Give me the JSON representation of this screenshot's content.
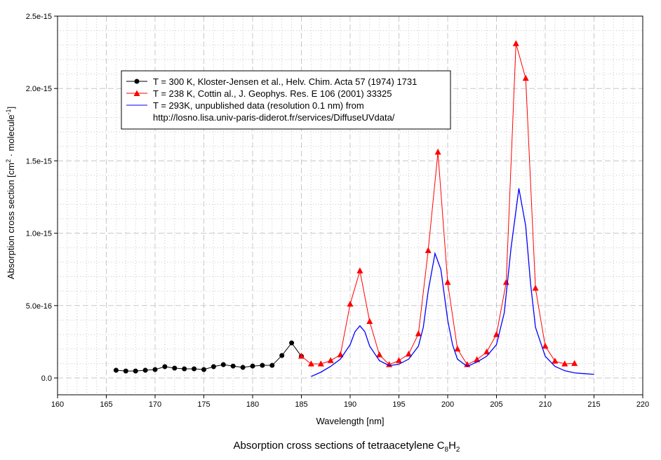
{
  "chart_data": {
    "type": "line",
    "title": "Absorption cross sections of tetraacetylene C8H2",
    "title_main": "Absorption cross sections of tetraacetylene C",
    "title_sub1": "8",
    "title_mid": "H",
    "title_sub2": "2",
    "xlabel": "Wavelength [nm]",
    "ylabel": "Absorption cross section [cm2 · molecule-1]",
    "ylabel_parts": {
      "a": "Absorption cross section [cm",
      "sup1": "2",
      "b": " · molecule",
      "sup2": "-1",
      "c": "]"
    },
    "xlim": [
      160,
      220
    ],
    "ylim": [
      0,
      2.5e-15
    ],
    "xticks": [
      "160",
      "165",
      "170",
      "175",
      "180",
      "185",
      "190",
      "195",
      "200",
      "205",
      "210",
      "215",
      "220"
    ],
    "yticks": [
      "0.0",
      "5.0e-16",
      "1.0e-15",
      "1.5e-15",
      "2.0e-15",
      "2.5e-15"
    ],
    "grid": true,
    "legend_position": "top-left",
    "series": [
      {
        "name": "T = 300 K, Kloster-Jensen et al., Helv. Chim. Acta 57 (1974) 1731",
        "color": "#000000",
        "marker": "circle",
        "x": [
          166,
          167,
          168,
          169,
          170,
          171,
          172,
          173,
          174,
          175,
          176,
          177,
          178,
          179,
          180,
          181,
          182,
          183,
          184,
          185
        ],
        "y": [
          5.3e-17,
          4.8e-17,
          4.8e-17,
          5.3e-17,
          5.8e-17,
          7.8e-17,
          6.8e-17,
          6.3e-17,
          6.3e-17,
          5.8e-17,
          7.8e-17,
          9.2e-17,
          8.2e-17,
          7.3e-17,
          8.2e-17,
          8.7e-17,
          8.7e-17,
          1.55e-16,
          2.42e-16,
          1.5e-16
        ]
      },
      {
        "name": "T = 238 K, Cottin al., J. Geophys. Res. E 106 (2001) 33325",
        "color": "#ff0000",
        "marker": "triangle",
        "x": [
          185,
          186,
          187,
          188,
          189,
          190,
          191,
          192,
          193,
          194,
          195,
          196,
          197,
          198,
          199,
          200,
          201,
          202,
          203,
          204,
          205,
          206,
          207,
          208,
          209,
          210,
          211,
          212,
          213
        ],
        "y": [
          1.5e-16,
          9.7e-17,
          9.7e-17,
          1.2e-16,
          1.6e-16,
          5.1e-16,
          7.4e-16,
          3.9e-16,
          1.6e-16,
          9.2e-17,
          1.2e-16,
          1.65e-16,
          3.05e-16,
          8.8e-16,
          1.56e-15,
          6.6e-16,
          2e-16,
          9.2e-17,
          1.26e-16,
          1.8e-16,
          3e-16,
          6.6e-16,
          2.31e-15,
          2.07e-15,
          6.2e-16,
          2.2e-16,
          1.16e-16,
          9.7e-17,
          1e-16
        ]
      },
      {
        "name": "T = 293K, unpublished data (resolution 0.1 nm) from",
        "name_line2": "http://losno.lisa.univ-paris-diderot.fr/services/DiffuseUVdata/",
        "color": "#0000ff",
        "marker": "none",
        "x": [
          186,
          187,
          188,
          189,
          190,
          190.5,
          191,
          191.5,
          192,
          193,
          194,
          195,
          196,
          197,
          197.5,
          198,
          198.7,
          199.3,
          200,
          200.5,
          201,
          202,
          203,
          204,
          205,
          205.8,
          206.5,
          207.3,
          208,
          208.5,
          209,
          210,
          211,
          212,
          213,
          214,
          215
        ],
        "y": [
          1e-17,
          4e-17,
          8e-17,
          1.3e-16,
          2.3e-16,
          3.2e-16,
          3.6e-16,
          3.2e-16,
          2.2e-16,
          1.2e-16,
          8.5e-17,
          9.5e-17,
          1.3e-16,
          2.2e-16,
          3.5e-16,
          6e-16,
          8.6e-16,
          7.5e-16,
          4e-16,
          2.3e-16,
          1.3e-16,
          8e-17,
          1.1e-16,
          1.5e-16,
          2.3e-16,
          4.5e-16,
          9e-16,
          1.31e-15,
          1.05e-15,
          6.5e-16,
          3.5e-16,
          1.5e-16,
          8e-17,
          5e-17,
          3.5e-17,
          3e-17,
          2.5e-17
        ]
      }
    ]
  }
}
